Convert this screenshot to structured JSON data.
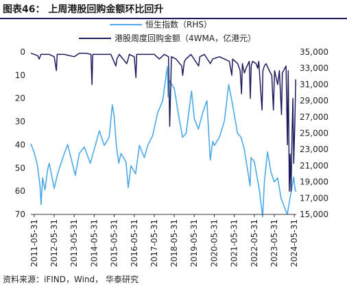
{
  "figure": {
    "title": "图表46：  上周港股回购金额环比回升",
    "source": "资料来源：iFIND，Wind，  华泰研究"
  },
  "colors": {
    "rhs_series": "#4aa8e8",
    "lhs_series": "#1b1b5c",
    "axis": "#333333"
  },
  "chart_data": {
    "type": "line",
    "title": "上周港股回购金额环比回升",
    "x_ticks": [
      "2011-05-31",
      "2012-05-31",
      "2013-05-31",
      "2014-05-31",
      "2015-05-31",
      "2016-05-31",
      "2017-05-31",
      "2018-05-31",
      "2019-05-31",
      "2020-05-31",
      "2021-05-31",
      "2022-05-31",
      "2023-05-31",
      "2024-05-31"
    ],
    "x_range": [
      "2011-04-01",
      "2024-07-05"
    ],
    "left_axis": {
      "range": [
        0,
        70
      ],
      "reversed": true,
      "ticks": [
        0,
        10,
        20,
        30,
        40,
        50,
        60,
        70
      ]
    },
    "right_axis": {
      "range": [
        15000,
        35000
      ],
      "ticks": [
        "15,000",
        "17,000",
        "19,000",
        "21,000",
        "23,000",
        "25,000",
        "27,000",
        "29,000",
        "31,000",
        "33,000",
        "35,000"
      ]
    },
    "legend_position": "top",
    "series": [
      {
        "name": "恒生指数（RHS）",
        "axis": "right",
        "points": [
          [
            "2011-04-01",
            23700
          ],
          [
            "2011-06-01",
            22600
          ],
          [
            "2011-08-01",
            21000
          ],
          [
            "2011-09-15",
            18500
          ],
          [
            "2011-10-04",
            16200
          ],
          [
            "2011-11-01",
            19500
          ],
          [
            "2011-12-15",
            18000
          ],
          [
            "2012-02-01",
            20500
          ],
          [
            "2012-03-01",
            21300
          ],
          [
            "2012-06-01",
            18200
          ],
          [
            "2012-08-01",
            20000
          ],
          [
            "2012-12-01",
            22500
          ],
          [
            "2013-02-01",
            23600
          ],
          [
            "2013-06-20",
            19800
          ],
          [
            "2013-09-01",
            22500
          ],
          [
            "2013-12-01",
            23300
          ],
          [
            "2014-03-20",
            21300
          ],
          [
            "2014-06-01",
            23000
          ],
          [
            "2014-09-01",
            25300
          ],
          [
            "2014-12-01",
            23500
          ],
          [
            "2015-03-01",
            24500
          ],
          [
            "2015-04-27",
            28500
          ],
          [
            "2015-06-01",
            27000
          ],
          [
            "2015-07-08",
            23500
          ],
          [
            "2015-08-24",
            21300
          ],
          [
            "2015-10-01",
            22500
          ],
          [
            "2016-01-01",
            21500
          ],
          [
            "2016-02-12",
            18300
          ],
          [
            "2016-04-01",
            21000
          ],
          [
            "2016-06-24",
            20000
          ],
          [
            "2016-09-01",
            23500
          ],
          [
            "2016-12-01",
            22000
          ],
          [
            "2017-02-01",
            23500
          ],
          [
            "2017-05-01",
            24700
          ],
          [
            "2017-08-01",
            27500
          ],
          [
            "2017-11-01",
            29000
          ],
          [
            "2018-01-26",
            33200
          ],
          [
            "2018-02-09",
            29500
          ],
          [
            "2018-03-01",
            31500
          ],
          [
            "2018-06-01",
            30500
          ],
          [
            "2018-08-15",
            27300
          ],
          [
            "2018-10-30",
            24500
          ],
          [
            "2019-01-03",
            25000
          ],
          [
            "2019-04-12",
            30200
          ],
          [
            "2019-06-01",
            26800
          ],
          [
            "2019-08-15",
            25500
          ],
          [
            "2019-11-01",
            27500
          ],
          [
            "2020-01-17",
            29000
          ],
          [
            "2020-03-19",
            21700
          ],
          [
            "2020-05-01",
            24000
          ],
          [
            "2020-06-01",
            23500
          ],
          [
            "2020-09-01",
            24500
          ],
          [
            "2020-12-01",
            26500
          ],
          [
            "2021-02-18",
            31000
          ],
          [
            "2021-05-01",
            28500
          ],
          [
            "2021-07-28",
            25000
          ],
          [
            "2021-10-01",
            24500
          ],
          [
            "2021-12-01",
            23000
          ],
          [
            "2022-03-15",
            18500
          ],
          [
            "2022-04-01",
            22000
          ],
          [
            "2022-06-01",
            21500
          ],
          [
            "2022-09-01",
            18000
          ],
          [
            "2022-10-31",
            14700
          ],
          [
            "2022-12-01",
            19000
          ],
          [
            "2023-01-27",
            22700
          ],
          [
            "2023-04-01",
            20200
          ],
          [
            "2023-06-01",
            19000
          ],
          [
            "2023-08-01",
            19500
          ],
          [
            "2023-10-01",
            17000
          ],
          [
            "2024-01-22",
            15000
          ],
          [
            "2024-03-01",
            16500
          ],
          [
            "2024-05-20",
            19600
          ],
          [
            "2024-06-15",
            18000
          ],
          [
            "2024-07-05",
            17800
          ]
        ]
      },
      {
        "name": "港股周度回购金额（4WMA，亿港元）",
        "axis": "left",
        "points": [
          [
            "2011-04-01",
            0.5
          ],
          [
            "2011-06-01",
            1
          ],
          [
            "2011-08-01",
            1.5
          ],
          [
            "2011-09-01",
            3
          ],
          [
            "2011-10-01",
            1
          ],
          [
            "2012-01-01",
            1
          ],
          [
            "2012-03-01",
            1
          ],
          [
            "2012-06-01",
            2
          ],
          [
            "2012-07-10",
            8
          ],
          [
            "2012-07-25",
            1
          ],
          [
            "2012-12-01",
            1
          ],
          [
            "2013-06-01",
            2
          ],
          [
            "2013-09-01",
            0.5
          ],
          [
            "2014-01-01",
            0.5
          ],
          [
            "2014-04-01",
            1
          ],
          [
            "2014-04-20",
            14
          ],
          [
            "2014-05-05",
            1
          ],
          [
            "2014-12-01",
            1
          ],
          [
            "2015-04-01",
            1
          ],
          [
            "2015-07-01",
            6
          ],
          [
            "2015-07-20",
            3
          ],
          [
            "2015-09-01",
            1
          ],
          [
            "2016-01-15",
            5
          ],
          [
            "2016-02-10",
            3
          ],
          [
            "2016-03-01",
            1
          ],
          [
            "2016-06-01",
            2
          ],
          [
            "2016-07-01",
            11
          ],
          [
            "2016-07-15",
            1
          ],
          [
            "2017-01-01",
            1
          ],
          [
            "2017-06-01",
            1
          ],
          [
            "2017-09-01",
            3
          ],
          [
            "2017-12-01",
            1
          ],
          [
            "2018-02-15",
            2
          ],
          [
            "2018-03-01",
            20
          ],
          [
            "2018-03-10",
            32
          ],
          [
            "2018-03-25",
            18
          ],
          [
            "2018-04-10",
            2
          ],
          [
            "2018-07-01",
            3
          ],
          [
            "2018-10-15",
            6
          ],
          [
            "2018-11-01",
            10
          ],
          [
            "2018-12-01",
            4
          ],
          [
            "2019-01-01",
            3
          ],
          [
            "2019-04-01",
            1
          ],
          [
            "2019-08-20",
            6
          ],
          [
            "2019-09-10",
            2
          ],
          [
            "2019-12-01",
            1
          ],
          [
            "2020-03-20",
            5
          ],
          [
            "2020-05-01",
            3
          ],
          [
            "2020-09-01",
            2
          ],
          [
            "2020-12-01",
            3
          ],
          [
            "2021-03-01",
            4
          ],
          [
            "2021-04-15",
            10
          ],
          [
            "2021-05-01",
            3
          ],
          [
            "2021-08-01",
            5
          ],
          [
            "2021-09-15",
            8
          ],
          [
            "2021-10-10",
            18
          ],
          [
            "2021-10-25",
            5
          ],
          [
            "2021-12-01",
            9
          ],
          [
            "2022-01-01",
            7
          ],
          [
            "2022-03-01",
            4
          ],
          [
            "2022-03-20",
            20
          ],
          [
            "2022-04-05",
            6
          ],
          [
            "2022-05-01",
            4
          ],
          [
            "2022-07-01",
            5
          ],
          [
            "2022-08-01",
            7
          ],
          [
            "2022-08-20",
            4
          ],
          [
            "2022-10-20",
            25
          ],
          [
            "2022-11-05",
            8
          ],
          [
            "2022-12-01",
            6
          ],
          [
            "2023-01-01",
            5
          ],
          [
            "2023-03-01",
            8
          ],
          [
            "2023-04-15",
            10
          ],
          [
            "2023-05-15",
            25
          ],
          [
            "2023-06-05",
            8
          ],
          [
            "2023-08-01",
            14
          ],
          [
            "2023-09-01",
            8
          ],
          [
            "2023-10-10",
            27
          ],
          [
            "2023-10-25",
            9
          ],
          [
            "2024-01-01",
            6
          ],
          [
            "2024-01-25",
            40
          ],
          [
            "2024-02-10",
            8
          ],
          [
            "2024-03-01",
            60
          ],
          [
            "2024-03-15",
            44
          ],
          [
            "2024-04-01",
            60
          ],
          [
            "2024-04-20",
            35
          ],
          [
            "2024-05-05",
            20
          ],
          [
            "2024-05-20",
            48
          ],
          [
            "2024-06-10",
            30
          ],
          [
            "2024-06-25",
            12
          ],
          [
            "2024-07-05",
            12
          ]
        ]
      }
    ]
  }
}
